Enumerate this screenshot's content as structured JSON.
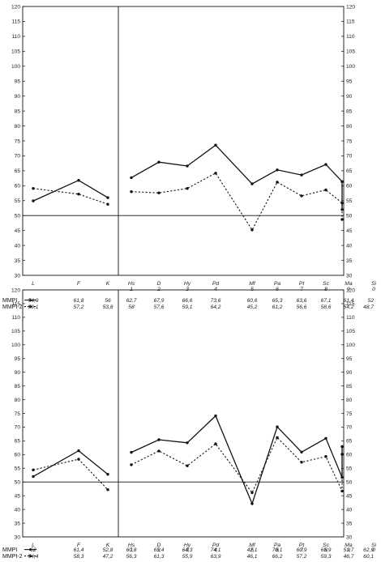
{
  "chart_data": [
    {
      "type": "line",
      "title": "",
      "xlabel": "",
      "ylabel": "",
      "ylim": [
        30,
        120
      ],
      "yticks": [
        30,
        35,
        40,
        45,
        50,
        55,
        60,
        65,
        70,
        75,
        80,
        85,
        90,
        95,
        100,
        105,
        110,
        115,
        120
      ],
      "reference_line": 50,
      "grid": false,
      "categories": [
        {
          "name": "L",
          "num": ""
        },
        {
          "name": "F",
          "num": ""
        },
        {
          "name": "K",
          "num": ""
        },
        {
          "name": "Hs",
          "num": "1"
        },
        {
          "name": "D",
          "num": "2"
        },
        {
          "name": "Hy",
          "num": "3"
        },
        {
          "name": "Pd",
          "num": "4"
        },
        {
          "name": "Mf",
          "num": "5"
        },
        {
          "name": "Pa",
          "num": "6"
        },
        {
          "name": "Pt",
          "num": "7"
        },
        {
          "name": "Sc",
          "num": "8"
        },
        {
          "name": "Ma",
          "num": "9"
        },
        {
          "name": "Si",
          "num": "0"
        }
      ],
      "series": [
        {
          "name": "MMPI",
          "style": "solid",
          "values": [
            54.9,
            61.8,
            56,
            62.7,
            67.9,
            66.6,
            73.6,
            60.6,
            65.3,
            63.6,
            67.1,
            61.4,
            52
          ],
          "labels": [
            "54,9",
            "61,8",
            "56",
            "62,7",
            "67,9",
            "66,6",
            "73,6",
            "60,6",
            "65,3",
            "63,6",
            "67,1",
            "61,4",
            "52"
          ]
        },
        {
          "name": "MMPI-2",
          "style": "dotted",
          "values": [
            59.1,
            57.2,
            53.8,
            58,
            57.6,
            59.1,
            64.2,
            45.2,
            61.2,
            56.6,
            58.6,
            54.2,
            48.7
          ],
          "labels": [
            "59,1",
            "57,2",
            "53,8",
            "58",
            "57,6",
            "59,1",
            "64,2",
            "45,2",
            "61,2",
            "56,6",
            "58,6",
            "54,2",
            "48,7"
          ]
        }
      ]
    },
    {
      "type": "line",
      "title": "",
      "xlabel": "",
      "ylabel": "",
      "ylim": [
        30,
        120
      ],
      "yticks": [
        30,
        35,
        40,
        45,
        50,
        55,
        60,
        65,
        70,
        75,
        80,
        85,
        90,
        95,
        100,
        105,
        110,
        115,
        120
      ],
      "reference_line": 50,
      "grid": false,
      "categories": [
        {
          "name": "L",
          "num": ""
        },
        {
          "name": "F",
          "num": ""
        },
        {
          "name": "K",
          "num": ""
        },
        {
          "name": "Hs",
          "num": "1"
        },
        {
          "name": "D",
          "num": "2"
        },
        {
          "name": "Hy",
          "num": "3"
        },
        {
          "name": "Pd",
          "num": "4"
        },
        {
          "name": "Mf",
          "num": "5"
        },
        {
          "name": "Pa",
          "num": "6"
        },
        {
          "name": "Pt",
          "num": "7"
        },
        {
          "name": "Sc",
          "num": "8"
        },
        {
          "name": "Ma",
          "num": "9"
        },
        {
          "name": "Si",
          "num": "0"
        }
      ],
      "series": [
        {
          "name": "MMPI",
          "style": "solid",
          "values": [
            52,
            61.4,
            52.8,
            60.8,
            65.4,
            64.3,
            74.1,
            42.1,
            70.1,
            60.9,
            65.9,
            51.7,
            62.9
          ],
          "labels": [
            "52",
            "61,4",
            "52,8",
            "60,8",
            "65,4",
            "64,3",
            "74,1",
            "42,1",
            "70,1",
            "60,9",
            "65,9",
            "51,7",
            "62,9"
          ]
        },
        {
          "name": "MMPI-2",
          "style": "dotted",
          "values": [
            54.4,
            58.3,
            47.2,
            56.3,
            61.3,
            55.9,
            63.9,
            46.1,
            66.2,
            57.2,
            59.3,
            46.7,
            60.1
          ],
          "labels": [
            "54,4",
            "58,3",
            "47,2",
            "56,3",
            "61,3",
            "55,9",
            "63,9",
            "46,1",
            "66,2",
            "57,2",
            "59,3",
            "46,7",
            "60,1"
          ]
        }
      ]
    }
  ]
}
